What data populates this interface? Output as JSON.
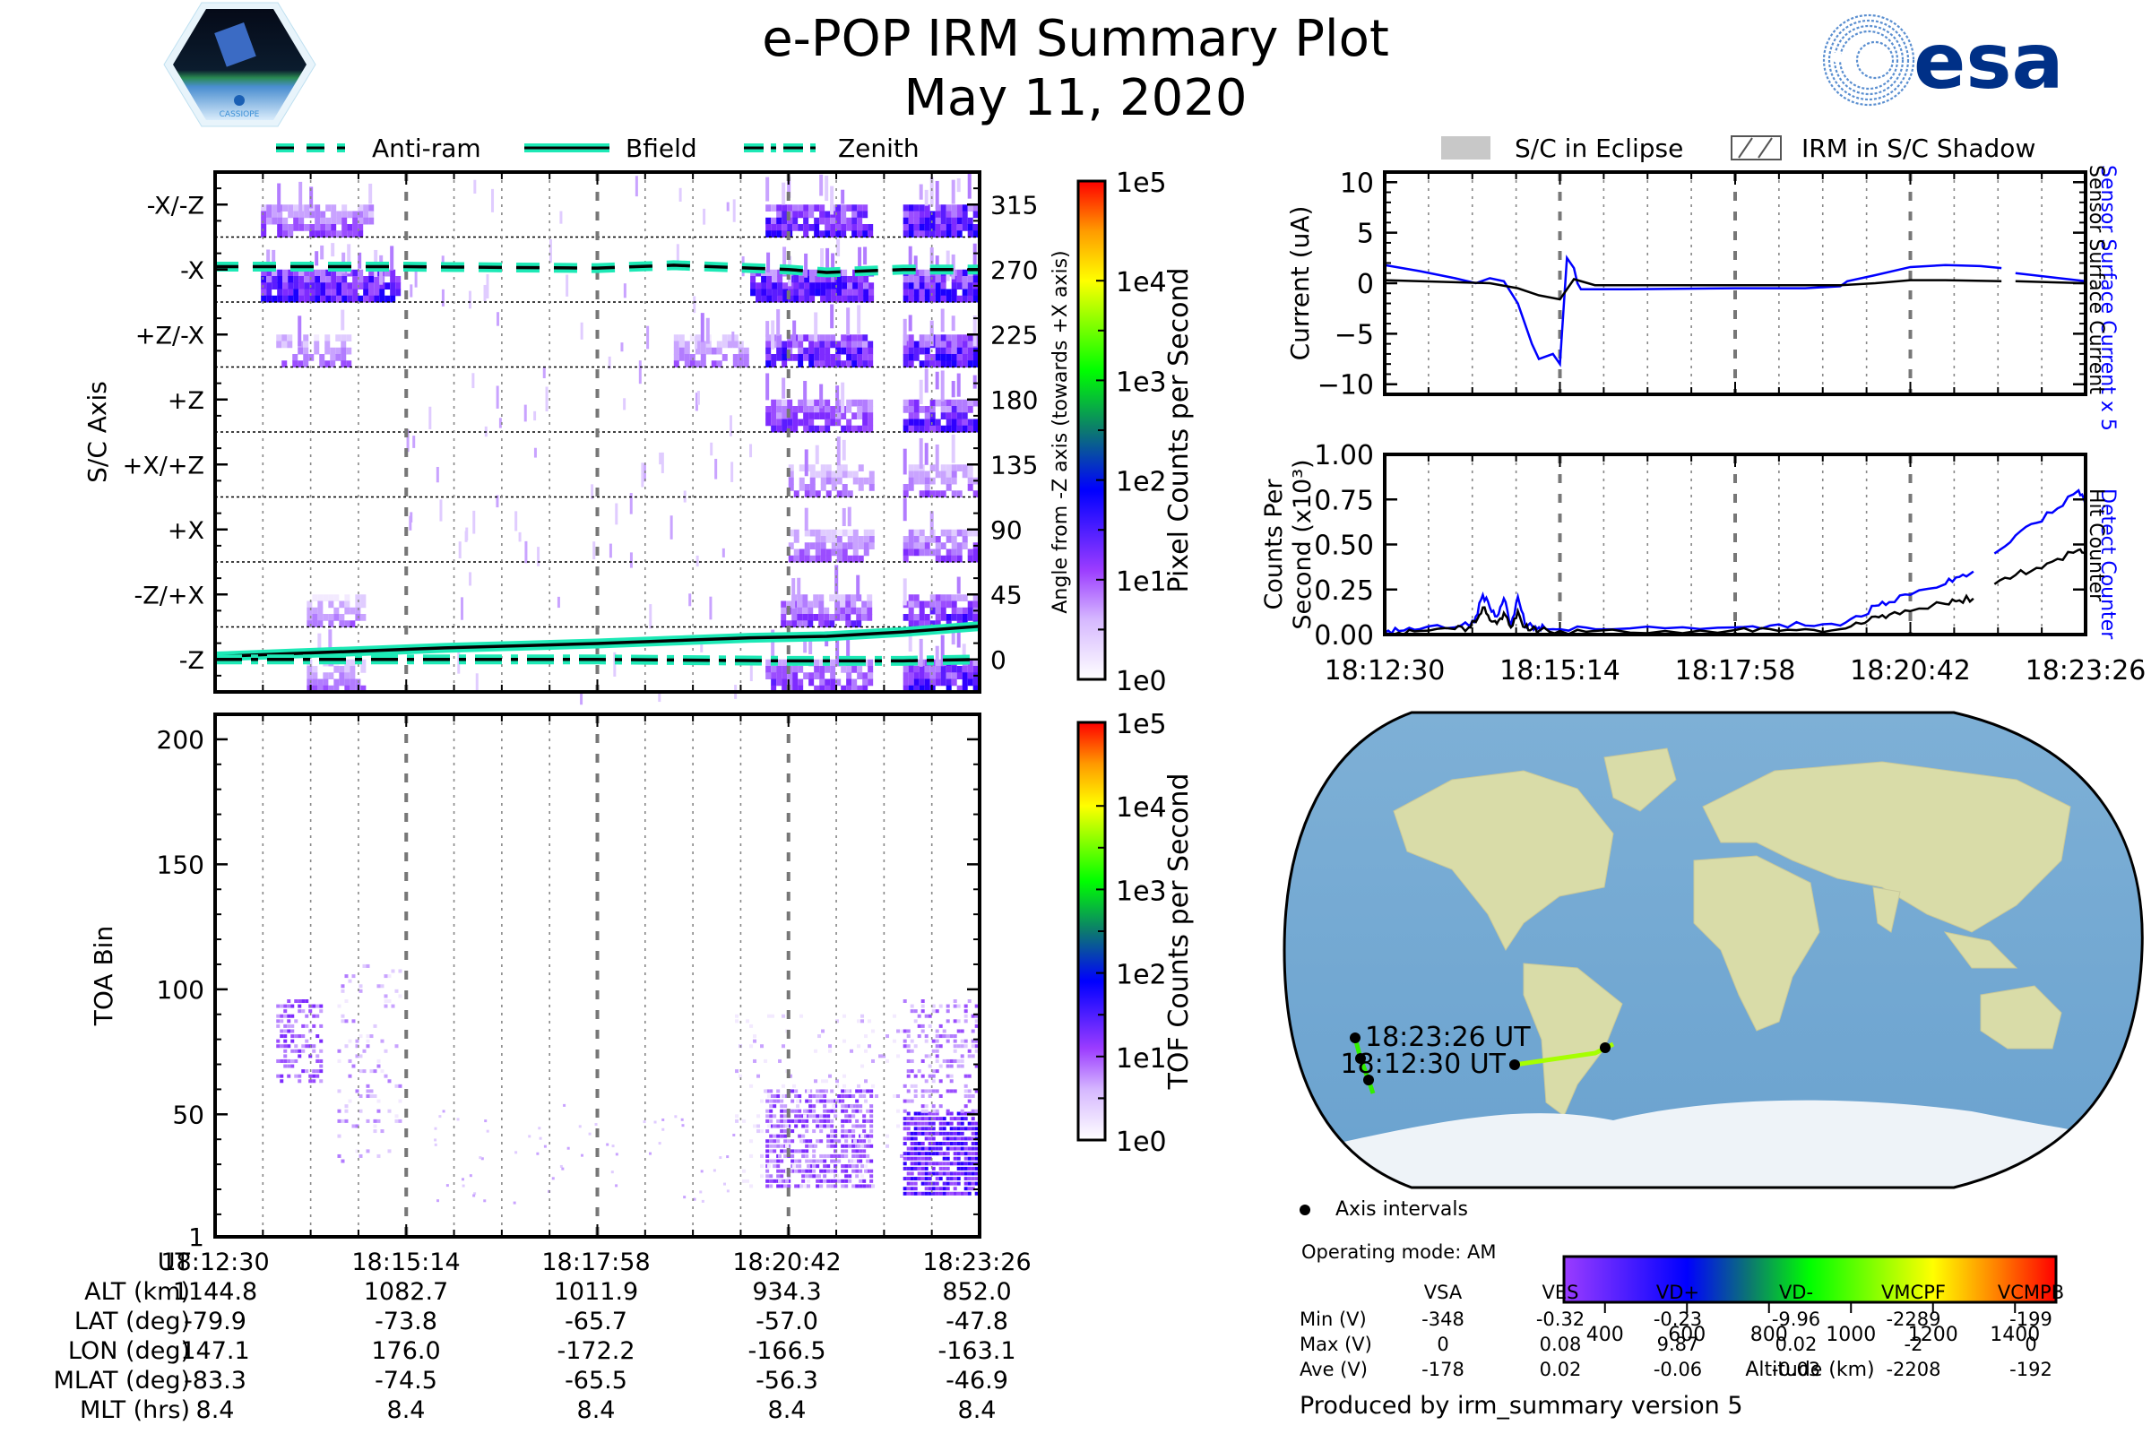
{
  "header": {
    "title": "e-POP IRM Summary Plot",
    "date": "May 11, 2020",
    "left_logo": "CASSIOPE",
    "right_logo": "esa"
  },
  "colors": {
    "cyan": "#1de9b6",
    "blue_series": "#0000ff",
    "black_series": "#000000",
    "purple_data": "#8a2be2",
    "esa_blue": "#003087"
  },
  "chart_data": [
    {
      "id": "sc-axis",
      "type": "heatmap",
      "title": "",
      "ylabel": "S/C Axis",
      "ylabel_right": "Angle from -Z axis (towards +X axis)",
      "y_axis_labels": [
        "-X/-Z",
        "-X",
        "+Z/-X",
        "+Z",
        "+X/+Z",
        "+X",
        "-Z/+X",
        "-Z"
      ],
      "y_right_ticks": [
        315,
        270,
        225,
        180,
        135,
        90,
        45,
        0
      ],
      "ylim": [
        -22.5,
        337.5
      ],
      "x_time_ticks": [
        "18:12:30",
        "18:15:14",
        "18:17:58",
        "18:20:42",
        "18:23:26"
      ],
      "legend": [
        {
          "label": "Anti-ram",
          "style": "dashed"
        },
        {
          "label": "Bfield",
          "style": "solid"
        },
        {
          "label": "Zenith",
          "style": "dashdot"
        }
      ],
      "lines": {
        "Anti-ram": {
          "x": [
            0,
            0.25,
            0.5,
            0.6,
            0.75,
            0.8,
            0.9,
            1.0
          ],
          "y": [
            272,
            272,
            271,
            273,
            270,
            268,
            270,
            270
          ]
        },
        "Bfield": {
          "x": [
            0,
            0.1,
            0.2,
            0.3,
            0.4,
            0.5,
            0.6,
            0.7,
            0.8,
            0.9,
            1.0
          ],
          "y": [
            2,
            4,
            6,
            8,
            9.5,
            11,
            13,
            15,
            16,
            19,
            23
          ]
        },
        "Zenith": {
          "x": [
            0,
            0.25,
            0.5,
            0.75,
            0.8,
            0.9,
            1.0
          ],
          "y": [
            0,
            0,
            0,
            -1,
            -1,
            -1,
            0
          ]
        }
      },
      "colorbar": {
        "label": "Pixel Counts per Second",
        "ticks": [
          "1e0",
          "1e1",
          "1e2",
          "1e3",
          "1e4",
          "1e5"
        ],
        "scale": "log"
      }
    },
    {
      "id": "toa",
      "type": "heatmap",
      "ylabel": "TOA Bin",
      "y_ticks": [
        1,
        50,
        100,
        150,
        200
      ],
      "ylim": [
        1,
        210
      ],
      "x_time_ticks": [
        "18:12:30",
        "18:15:14",
        "18:17:58",
        "18:20:42",
        "18:23:26"
      ],
      "colorbar": {
        "label": "TOF Counts per Second",
        "ticks": [
          "1e0",
          "1e1",
          "1e2",
          "1e3",
          "1e4",
          "1e5"
        ],
        "scale": "log"
      }
    },
    {
      "id": "current",
      "type": "line",
      "ylabel": "Current (uA)",
      "ylabel_right": [
        "Sensor Surface Current x 5",
        "Sensor Surface Current"
      ],
      "y_ticks": [
        10,
        5,
        0,
        -5,
        -10
      ],
      "ylim": [
        -11,
        11
      ],
      "legend": [
        {
          "label": "S/C in Eclipse",
          "style": "fill-gray"
        },
        {
          "label": "IRM in S/C Shadow",
          "style": "hatch"
        }
      ],
      "series": [
        {
          "name": "Sensor Surface Current x 5",
          "color": "#0000ff",
          "x": [
            0,
            0.05,
            0.1,
            0.13,
            0.15,
            0.17,
            0.19,
            0.2,
            0.21,
            0.22,
            0.24,
            0.25,
            0.26,
            0.27,
            0.275,
            0.28,
            0.29,
            0.3,
            0.35,
            0.5,
            0.6,
            0.65,
            0.66,
            0.7,
            0.75,
            0.8,
            0.85,
            0.88,
            null,
            0.9,
            0.95,
            1.0
          ],
          "y": [
            1.8,
            1.2,
            0.5,
            0.0,
            0.5,
            0.2,
            -2,
            -4,
            -6,
            -7.5,
            -7,
            -8,
            2.5,
            1.5,
            0,
            -0.6,
            -0.6,
            -0.6,
            -0.6,
            -0.5,
            -0.5,
            -0.3,
            0.2,
            0.8,
            1.6,
            1.8,
            1.7,
            1.5,
            null,
            1.0,
            0.6,
            0.2
          ]
        },
        {
          "name": "Sensor Surface Current",
          "color": "#000000",
          "x": [
            0,
            0.1,
            0.15,
            0.19,
            0.22,
            0.25,
            0.27,
            0.28,
            0.3,
            0.5,
            0.65,
            0.7,
            0.75,
            0.8,
            0.88,
            null,
            0.9,
            1.0
          ],
          "y": [
            0.3,
            0.1,
            0.0,
            -0.5,
            -1.2,
            -1.6,
            0.4,
            0.2,
            -0.2,
            -0.2,
            -0.2,
            0.0,
            0.3,
            0.3,
            0.2,
            null,
            0.2,
            0.0
          ]
        }
      ]
    },
    {
      "id": "counts",
      "type": "line",
      "ylabel": "Counts Per Second (x10³)",
      "ylabel_right": [
        "Detect Counter",
        "Hit Counter"
      ],
      "y_ticks": [
        "0.00",
        "0.25",
        "0.50",
        "0.75",
        "1.00"
      ],
      "ylim": [
        0,
        1.0
      ],
      "x_time_ticks": [
        "18:12:30",
        "18:15:14",
        "18:17:58",
        "18:20:42",
        "18:23:26"
      ],
      "series": [
        {
          "name": "Detect Counter",
          "color": "#0000ff",
          "x": [
            0,
            0.02,
            0.05,
            0.1,
            0.12,
            0.13,
            0.14,
            0.15,
            0.16,
            0.17,
            0.18,
            0.19,
            0.2,
            0.21,
            0.22,
            0.23,
            0.25,
            0.3,
            0.4,
            0.5,
            0.55,
            0.6,
            0.65,
            0.68,
            0.7,
            0.72,
            0.75,
            0.8,
            0.82,
            0.84,
            null,
            0.87,
            0.9,
            0.93,
            0.96,
            0.99,
            1.0
          ],
          "y": [
            0.01,
            0.02,
            0.03,
            0.04,
            0.05,
            0.1,
            0.22,
            0.15,
            0.1,
            0.2,
            0.05,
            0.21,
            0.06,
            0.05,
            0.04,
            0.03,
            0.03,
            0.03,
            0.035,
            0.04,
            0.05,
            0.05,
            0.05,
            0.1,
            0.16,
            0.18,
            0.22,
            0.28,
            0.32,
            0.35,
            null,
            0.45,
            0.55,
            0.62,
            0.7,
            0.8,
            0.72
          ]
        },
        {
          "name": "Hit Counter",
          "color": "#000000",
          "x": [
            0,
            0.02,
            0.05,
            0.1,
            0.12,
            0.13,
            0.14,
            0.15,
            0.16,
            0.17,
            0.18,
            0.19,
            0.2,
            0.21,
            0.22,
            0.25,
            0.3,
            0.4,
            0.5,
            0.55,
            0.6,
            0.65,
            0.68,
            0.7,
            0.72,
            0.75,
            0.8,
            0.82,
            0.84,
            null,
            0.87,
            0.9,
            0.93,
            0.96,
            0.99,
            1.0
          ],
          "y": [
            0.0,
            0.01,
            0.02,
            0.03,
            0.04,
            0.07,
            0.15,
            0.08,
            0.06,
            0.12,
            0.04,
            0.13,
            0.04,
            0.03,
            0.02,
            0.02,
            0.02,
            0.02,
            0.025,
            0.03,
            0.03,
            0.03,
            0.06,
            0.1,
            0.11,
            0.13,
            0.17,
            0.19,
            0.2,
            null,
            0.28,
            0.33,
            0.37,
            0.42,
            0.47,
            0.45
          ]
        }
      ]
    },
    {
      "id": "altitude-colorbar",
      "type": "bar",
      "xlabel": "Altitude (km)",
      "ticks": [
        400,
        600,
        800,
        1000,
        1200,
        1400
      ],
      "range": [
        300,
        1500
      ]
    }
  ],
  "map": {
    "start_label": "18:12:30 UT",
    "end_label": "18:23:26 UT",
    "legend_label": "Axis intervals"
  },
  "operating_mode": "Operating mode: AM",
  "orbit_table": {
    "row_labels": [
      "UT",
      "ALT (km)",
      "LAT (deg)",
      "LON (deg)",
      "MLAT (deg)",
      "MLT (hrs)"
    ],
    "columns": [
      [
        "18:12:30",
        "1144.8",
        "-79.9",
        "147.1",
        "-83.3",
        "8.4"
      ],
      [
        "18:15:14",
        "1082.7",
        "-73.8",
        "176.0",
        "-74.5",
        "8.4"
      ],
      [
        "18:17:58",
        "1011.9",
        "-65.7",
        "-172.2",
        "-65.5",
        "8.4"
      ],
      [
        "18:20:42",
        "934.3",
        "-57.0",
        "-166.5",
        "-56.3",
        "8.4"
      ],
      [
        "18:23:26",
        "852.0",
        "-47.8",
        "-163.1",
        "-46.9",
        "8.4"
      ]
    ]
  },
  "voltage_table": {
    "headers": [
      "VSA",
      "VES",
      "VD+",
      "VD-",
      "VMCPF",
      "VCMPB"
    ],
    "rows": [
      {
        "label": "Min (V)",
        "values": [
          "-348",
          "-0.32",
          "-0.23",
          "-9.96",
          "-2289",
          "-199"
        ]
      },
      {
        "label": "Max (V)",
        "values": [
          "0",
          "0.08",
          "9.87",
          "0.02",
          "-2",
          "0"
        ]
      },
      {
        "label": "Ave (V)",
        "values": [
          "-178",
          "0.02",
          "-0.06",
          "-0.03",
          "-2208",
          "-192"
        ]
      }
    ]
  },
  "footer": "Produced by irm_summary version 5"
}
